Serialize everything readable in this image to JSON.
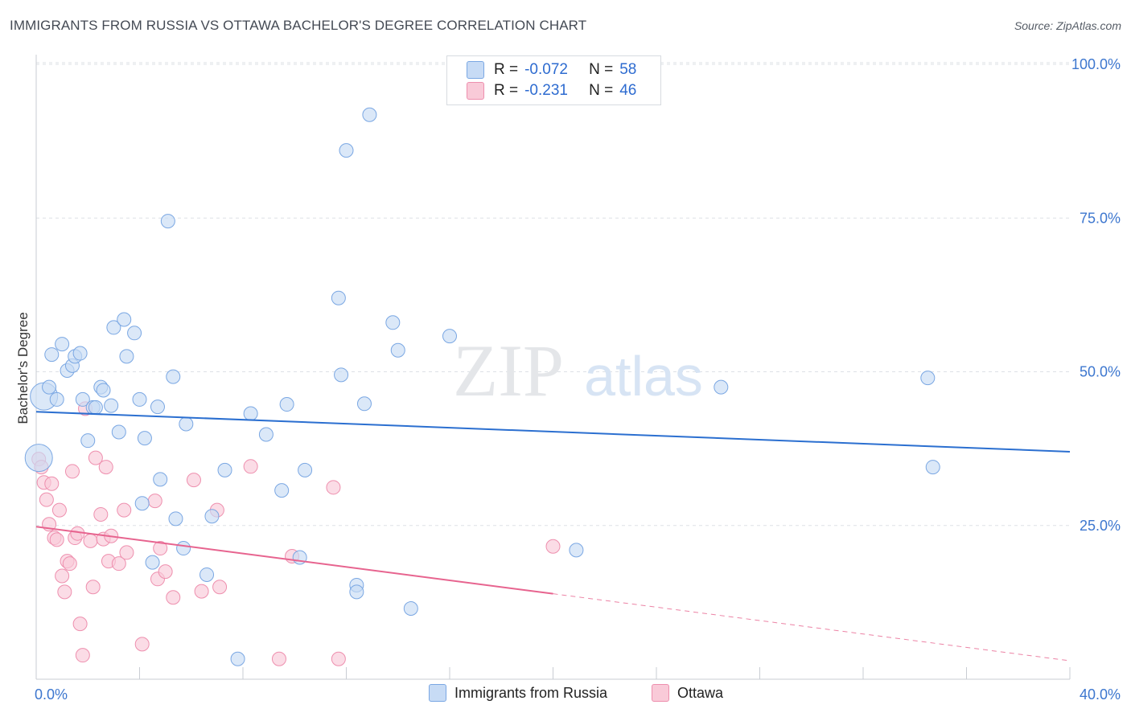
{
  "title": "IMMIGRANTS FROM RUSSIA VS OTTAWA BACHELOR'S DEGREE CORRELATION CHART",
  "source": "Source: ZipAtlas.com",
  "watermark": {
    "zip": "ZIP",
    "atlas": "atlas"
  },
  "legend": {
    "r_label": "R =",
    "n_label": "N =",
    "rows": [
      {
        "r": "-0.072",
        "n": "58",
        "color": "#a9c6ee"
      },
      {
        "r": "-0.231",
        "n": "46",
        "color": "#f6b8cb"
      }
    ]
  },
  "colors": {
    "russia_fill": "#c7dbf5",
    "russia_stroke": "#7aa7e3",
    "russia_line": "#2b6fd0",
    "ottawa_fill": "#f9cad8",
    "ottawa_stroke": "#ee8fae",
    "ottawa_line": "#e7648f",
    "tick_label": "#3d77cf",
    "grid": "#dde1e6"
  },
  "chart_data": {
    "type": "scatter",
    "title": "IMMIGRANTS FROM RUSSIA VS OTTAWA BACHELOR'S DEGREE CORRELATION CHART",
    "xlabel": "",
    "ylabel": "Bachelor's Degree",
    "xlim": [
      0,
      40
    ],
    "ylim": [
      0,
      100
    ],
    "x_tick_labels": [
      "0.0%",
      "40.0%"
    ],
    "y_ticks": [
      {
        "value": 25,
        "label": "25.0%"
      },
      {
        "value": 50,
        "label": "50.0%"
      },
      {
        "value": 75,
        "label": "75.0%"
      },
      {
        "value": 100,
        "label": "100.0%"
      }
    ],
    "series": [
      {
        "name": "Immigrants from Russia",
        "trend": {
          "x": [
            0,
            40
          ],
          "y": [
            43.5,
            37.0
          ],
          "dash_from": null
        },
        "points": [
          [
            0.3,
            46.0,
            "big"
          ],
          [
            0.5,
            47.5
          ],
          [
            0.8,
            45.5
          ],
          [
            0.6,
            52.8
          ],
          [
            1.0,
            54.5
          ],
          [
            1.2,
            50.2
          ],
          [
            1.4,
            51.0
          ],
          [
            1.5,
            52.5
          ],
          [
            1.7,
            53.0
          ],
          [
            1.8,
            45.5
          ],
          [
            2.0,
            38.8
          ],
          [
            2.2,
            44.2
          ],
          [
            2.3,
            44.2
          ],
          [
            2.5,
            47.5
          ],
          [
            2.6,
            47.0
          ],
          [
            2.9,
            44.5
          ],
          [
            3.0,
            57.2
          ],
          [
            3.2,
            40.2
          ],
          [
            3.4,
            58.5
          ],
          [
            3.5,
            52.5
          ],
          [
            3.8,
            56.3
          ],
          [
            4.0,
            45.5
          ],
          [
            4.2,
            39.2
          ],
          [
            4.1,
            28.6
          ],
          [
            4.5,
            19.0
          ],
          [
            4.7,
            44.3
          ],
          [
            4.8,
            32.5
          ],
          [
            5.1,
            74.5
          ],
          [
            5.3,
            49.2
          ],
          [
            5.4,
            26.1
          ],
          [
            5.7,
            21.3
          ],
          [
            5.8,
            41.5
          ],
          [
            6.6,
            17.0
          ],
          [
            6.8,
            26.5
          ],
          [
            7.3,
            34.0
          ],
          [
            7.8,
            3.3
          ],
          [
            8.3,
            43.2
          ],
          [
            8.9,
            39.8
          ],
          [
            9.5,
            30.7
          ],
          [
            9.7,
            44.7
          ],
          [
            10.2,
            19.8
          ],
          [
            10.4,
            34.0
          ],
          [
            11.7,
            62.0
          ],
          [
            11.8,
            49.5
          ],
          [
            12.0,
            86.0
          ],
          [
            12.4,
            15.3
          ],
          [
            12.4,
            14.2
          ],
          [
            12.7,
            44.8
          ],
          [
            12.9,
            91.8
          ],
          [
            13.8,
            58.0
          ],
          [
            14.0,
            53.5
          ],
          [
            14.5,
            11.5
          ],
          [
            16.0,
            55.8
          ],
          [
            20.9,
            21.0
          ],
          [
            26.5,
            47.5
          ],
          [
            34.5,
            49.0
          ],
          [
            34.7,
            34.5
          ],
          [
            0.1,
            36.0,
            "big"
          ]
        ]
      },
      {
        "name": "Ottawa",
        "trend": {
          "x": [
            0,
            40
          ],
          "y": [
            24.8,
            3.0
          ],
          "dash_from": 20.0
        },
        "points": [
          [
            0.1,
            35.8
          ],
          [
            0.2,
            34.5
          ],
          [
            0.3,
            32.0
          ],
          [
            0.4,
            29.2
          ],
          [
            0.5,
            25.2
          ],
          [
            0.6,
            31.8
          ],
          [
            0.7,
            23.0
          ],
          [
            0.8,
            22.7
          ],
          [
            0.9,
            27.5
          ],
          [
            1.0,
            16.8
          ],
          [
            1.1,
            14.2
          ],
          [
            1.2,
            19.2
          ],
          [
            1.3,
            18.8
          ],
          [
            1.4,
            33.8
          ],
          [
            1.5,
            23.0
          ],
          [
            1.6,
            23.7
          ],
          [
            1.7,
            9.0
          ],
          [
            1.8,
            3.9
          ],
          [
            1.9,
            44.0
          ],
          [
            2.1,
            22.5
          ],
          [
            2.2,
            15.0
          ],
          [
            2.3,
            36.0
          ],
          [
            2.5,
            26.8
          ],
          [
            2.6,
            22.8
          ],
          [
            2.7,
            34.5
          ],
          [
            2.8,
            19.2
          ],
          [
            2.9,
            23.3
          ],
          [
            3.2,
            18.8
          ],
          [
            3.4,
            27.5
          ],
          [
            3.5,
            20.6
          ],
          [
            4.1,
            5.7
          ],
          [
            4.6,
            29.0
          ],
          [
            4.7,
            16.3
          ],
          [
            4.8,
            21.3
          ],
          [
            5.0,
            17.5
          ],
          [
            5.3,
            13.3
          ],
          [
            6.1,
            32.4
          ],
          [
            6.4,
            14.3
          ],
          [
            7.0,
            27.5
          ],
          [
            7.1,
            15.0
          ],
          [
            8.3,
            34.6
          ],
          [
            9.4,
            3.3
          ],
          [
            9.9,
            20.0
          ],
          [
            11.5,
            31.2
          ],
          [
            11.7,
            3.3
          ],
          [
            20.0,
            21.6
          ]
        ]
      }
    ]
  },
  "bottom_legend": [
    {
      "label": "Immigrants from Russia",
      "color": "#a9c6ee"
    },
    {
      "label": "Ottawa",
      "color": "#f6b8cb"
    }
  ]
}
